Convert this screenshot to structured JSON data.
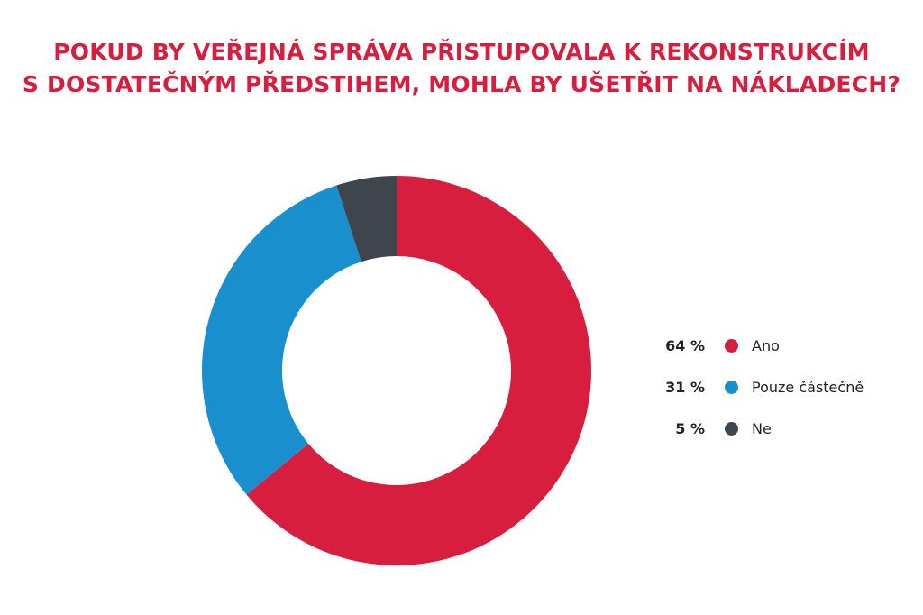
{
  "chart_data": {
    "type": "pie",
    "title_lines": [
      "POKUD BY VEŘEJNÁ SPRÁVA PŘISTUPOVALA K REKONSTRUKCÍM",
      "S DOSTATEČNÝM PŘEDSTIHEM, MOHLA BY UŠETŘIT NA NÁKLADECH?"
    ],
    "donut": true,
    "legend_position": "right",
    "slices": [
      {
        "label": "Ano",
        "value": 64,
        "value_label": "64 %",
        "color": "#d81e3f"
      },
      {
        "label": "Pouze částečně",
        "value": 31,
        "value_label": "31 %",
        "color": "#1a8fce"
      },
      {
        "label": "Ne",
        "value": 5,
        "value_label": "5 %",
        "color": "#3e454c"
      }
    ]
  }
}
